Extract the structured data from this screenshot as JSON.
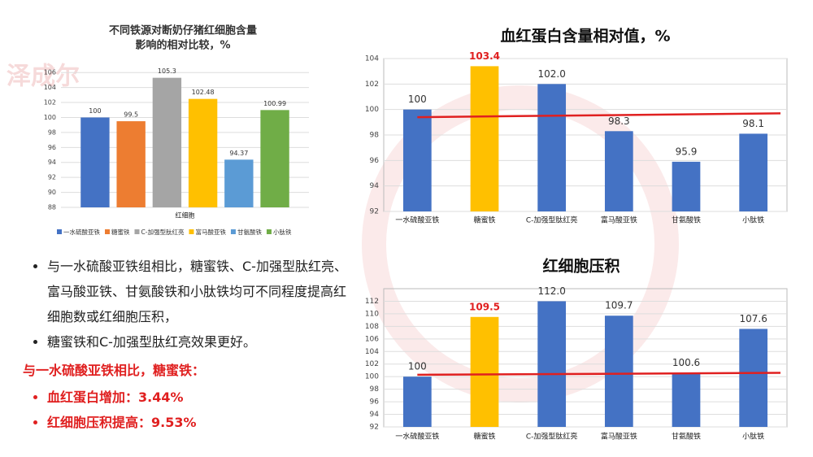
{
  "chart_data": [
    {
      "type": "bar",
      "title": [
        "不同铁源对断奶仔猪红细胞含量",
        "影响的相对比较，%"
      ],
      "categories": [
        "红细胞"
      ],
      "series": [
        {
          "name": "一水硫酸亚铁",
          "color": "#4472c4",
          "values": [
            100
          ]
        },
        {
          "name": "糖蜜铁",
          "color": "#ed7d31",
          "values": [
            99.5
          ]
        },
        {
          "name": "C-加强型肽红亮",
          "color": "#a5a5a5",
          "values": [
            105.3
          ]
        },
        {
          "name": "富马酸亚铁",
          "color": "#ffc000",
          "values": [
            102.48
          ]
        },
        {
          "name": "甘氨酸铁",
          "color": "#5b9bd5",
          "values": [
            94.37
          ]
        },
        {
          "name": "小肽铁",
          "color": "#70ad47",
          "values": [
            100.99
          ]
        }
      ],
      "ylim": [
        88,
        107
      ],
      "yticks": [
        88,
        90,
        92,
        94,
        96,
        98,
        100,
        102,
        104,
        106
      ],
      "grid": true,
      "legend": "bottom"
    },
    {
      "type": "bar",
      "title": "血红蛋白含量相对值，%",
      "categories": [
        "一水硫酸亚铁",
        "糖蜜铁",
        "C-加强型肽红亮",
        "富马酸亚铁",
        "甘氨酸铁",
        "小肽铁"
      ],
      "values": [
        100,
        103.4,
        102.0,
        98.3,
        95.9,
        98.1
      ],
      "value_labels": [
        "100",
        "103.4",
        "102.0",
        "98.3",
        "95.9",
        "98.1"
      ],
      "colors": [
        "#4472c4",
        "#ffc000",
        "#4472c4",
        "#4472c4",
        "#4472c4",
        "#4472c4"
      ],
      "label_colors": [
        "#333333",
        "#e02020",
        "#333333",
        "#333333",
        "#333333",
        "#333333"
      ],
      "trend_line": [
        99.4,
        99.7
      ],
      "trend_color": "#e02020",
      "ylim": [
        92,
        104
      ],
      "yticks": [
        92,
        94,
        96,
        98,
        100,
        102,
        104
      ],
      "grid": true
    },
    {
      "type": "bar",
      "title": "红细胞压积",
      "categories": [
        "一水硫酸亚铁",
        "糖蜜铁",
        "C-加强型肽红亮",
        "富马酸亚铁",
        "甘氨酸铁",
        "小肽铁"
      ],
      "values": [
        100,
        109.5,
        112.0,
        109.7,
        100.6,
        107.6
      ],
      "value_labels": [
        "100",
        "109.5",
        "112.0",
        "109.7",
        "100.6",
        "107.6"
      ],
      "colors": [
        "#4472c4",
        "#ffc000",
        "#4472c4",
        "#4472c4",
        "#4472c4",
        "#4472c4"
      ],
      "label_colors": [
        "#333333",
        "#e02020",
        "#333333",
        "#333333",
        "#333333",
        "#333333"
      ],
      "trend_line": [
        100.3,
        100.6
      ],
      "trend_color": "#e02020",
      "ylim": [
        92,
        114
      ],
      "yticks": [
        92,
        94,
        96,
        98,
        100,
        102,
        104,
        106,
        108,
        110,
        112
      ],
      "grid": true
    }
  ],
  "watermark": "泽成尔",
  "bullets": [
    "与一水硫酸亚铁组相比，糖蜜铁、C-加强型肽红亮、富马酸亚铁、甘氨酸铁和小肽铁均可不同程度提高红细胞数或红细胞压积，",
    "糖蜜铁和C-加强型肽红亮效果更好。"
  ],
  "highlight": {
    "heading": "与一水硫酸亚铁相比，糖蜜铁：",
    "items": [
      "血红蛋白增加：3.44%",
      "红细胞压积提高：9.53%"
    ]
  }
}
